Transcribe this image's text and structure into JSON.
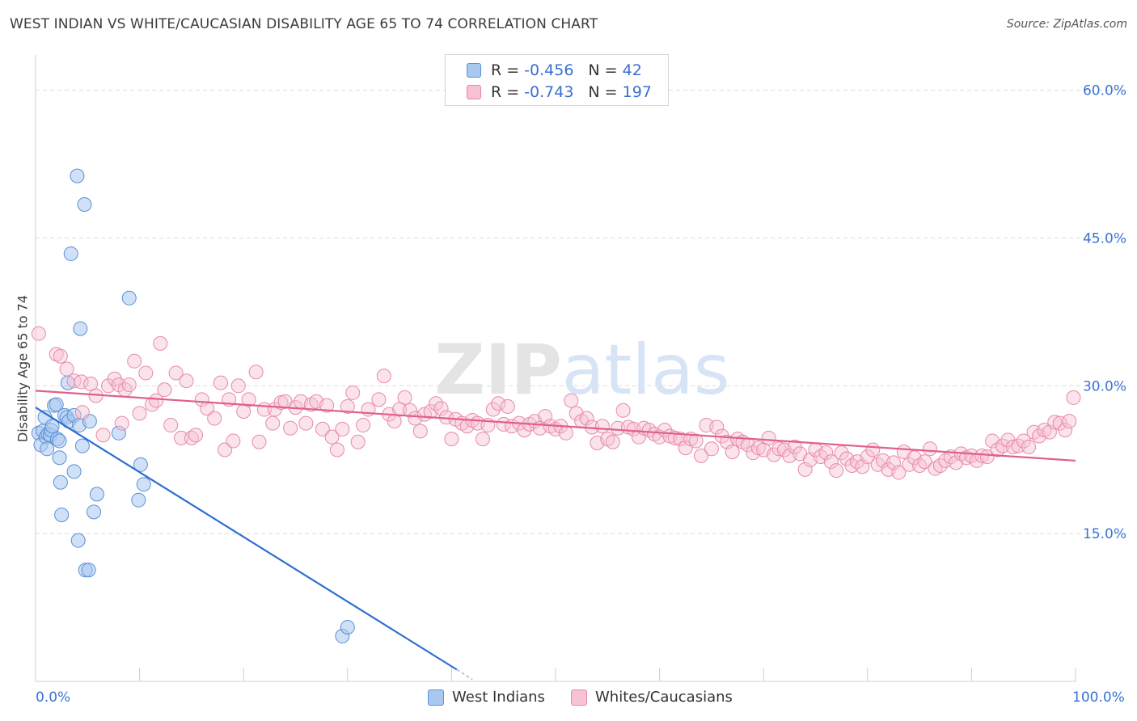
{
  "title": "WEST INDIAN VS WHITE/CAUCASIAN DISABILITY AGE 65 TO 74 CORRELATION CHART",
  "source": "Source: ZipAtlas.com",
  "watermark": "ZIPatlas",
  "legend": {
    "rows": [
      {
        "r_label": "R =",
        "r_value": "-0.456",
        "n_label": "N =",
        "n_value": "42",
        "color": "#a9c8f0"
      },
      {
        "r_label": "R =",
        "r_value": "-0.743",
        "n_label": "N =",
        "n_value": "197",
        "color": "#f7b8cb"
      }
    ]
  },
  "bottom_legend": [
    "West Indians",
    "Whites/Caucasians"
  ],
  "colors": {
    "blue_fill": "#a9c8f0",
    "blue_stroke": "#5b8fd6",
    "blue_line": "#2e6fd0",
    "pink_fill": "#f7c2d2",
    "pink_stroke": "#e889a8",
    "pink_line": "#e0608a",
    "axis_label": "#3a73d3",
    "grid": "#dcdcdc"
  },
  "chart_data": {
    "type": "scatter",
    "title": "WEST INDIAN VS WHITE/CAUCASIAN DISABILITY AGE 65 TO 74 CORRELATION CHART",
    "xlabel": "",
    "ylabel": "Disability Age 65 to 74",
    "xlim": [
      0,
      100
    ],
    "ylim": [
      0,
      63
    ],
    "x_tick_labels": [
      "0.0%",
      "100.0%"
    ],
    "y_ticks": [
      15,
      30,
      45,
      60
    ],
    "y_tick_labels": [
      "15.0%",
      "30.0%",
      "45.0%",
      "60.0%"
    ],
    "grid": true,
    "legend_position": "top-center",
    "series": [
      {
        "name": "West Indians",
        "r": -0.456,
        "n": 42,
        "trend": {
          "x": [
            0,
            40.5
          ],
          "y": [
            27.8,
            1.2
          ],
          "dashed_to": [
            42,
            0.2
          ]
        },
        "points": [
          [
            0.3,
            25.2
          ],
          [
            0.5,
            24.0
          ],
          [
            0.7,
            25.4
          ],
          [
            0.9,
            26.8
          ],
          [
            1.0,
            24.8
          ],
          [
            1.1,
            23.6
          ],
          [
            1.2,
            25.1
          ],
          [
            1.4,
            25.0
          ],
          [
            1.5,
            25.5
          ],
          [
            1.6,
            25.9
          ],
          [
            1.8,
            28.0
          ],
          [
            2.0,
            28.1
          ],
          [
            2.1,
            24.6
          ],
          [
            2.3,
            24.4
          ],
          [
            2.3,
            22.7
          ],
          [
            2.4,
            20.2
          ],
          [
            2.5,
            16.9
          ],
          [
            2.8,
            27.0
          ],
          [
            3.0,
            26.8
          ],
          [
            3.2,
            26.4
          ],
          [
            3.1,
            30.3
          ],
          [
            3.4,
            43.4
          ],
          [
            3.7,
            21.3
          ],
          [
            3.7,
            27.0
          ],
          [
            4.0,
            51.3
          ],
          [
            4.1,
            14.3
          ],
          [
            4.2,
            26.0
          ],
          [
            4.3,
            35.8
          ],
          [
            4.5,
            23.9
          ],
          [
            4.7,
            48.4
          ],
          [
            4.8,
            11.3
          ],
          [
            5.1,
            11.3
          ],
          [
            5.2,
            26.4
          ],
          [
            5.6,
            17.2
          ],
          [
            5.9,
            19.0
          ],
          [
            8.0,
            25.2
          ],
          [
            9.0,
            38.9
          ],
          [
            9.9,
            18.4
          ],
          [
            10.1,
            22.0
          ],
          [
            10.4,
            20.0
          ],
          [
            29.5,
            4.6
          ],
          [
            30.0,
            5.5
          ]
        ]
      },
      {
        "name": "Whites/Caucasians",
        "r": -0.743,
        "n": 197,
        "trend": {
          "x": [
            0,
            100
          ],
          "y": [
            29.5,
            22.4
          ]
        },
        "points": [
          [
            0.3,
            35.3
          ],
          [
            2.0,
            33.2
          ],
          [
            2.4,
            33.0
          ],
          [
            3.0,
            31.7
          ],
          [
            3.7,
            30.5
          ],
          [
            4.4,
            30.4
          ],
          [
            4.5,
            27.3
          ],
          [
            5.3,
            30.2
          ],
          [
            5.8,
            29.0
          ],
          [
            6.5,
            25.0
          ],
          [
            7.0,
            30.0
          ],
          [
            7.6,
            30.7
          ],
          [
            8.0,
            30.1
          ],
          [
            8.3,
            26.2
          ],
          [
            8.6,
            29.6
          ],
          [
            9.0,
            30.1
          ],
          [
            9.5,
            32.5
          ],
          [
            10.0,
            27.2
          ],
          [
            10.6,
            31.3
          ],
          [
            11.2,
            28.1
          ],
          [
            11.6,
            28.5
          ],
          [
            12.0,
            34.3
          ],
          [
            12.4,
            29.6
          ],
          [
            13.0,
            26.0
          ],
          [
            13.5,
            31.3
          ],
          [
            14.0,
            24.7
          ],
          [
            14.5,
            30.5
          ],
          [
            15.0,
            24.7
          ],
          [
            15.4,
            25.0
          ],
          [
            16.0,
            28.6
          ],
          [
            16.5,
            27.7
          ],
          [
            17.2,
            26.7
          ],
          [
            17.8,
            30.3
          ],
          [
            18.2,
            23.5
          ],
          [
            18.6,
            28.6
          ],
          [
            19.0,
            24.4
          ],
          [
            19.5,
            30.0
          ],
          [
            20.0,
            27.4
          ],
          [
            20.5,
            28.6
          ],
          [
            21.2,
            31.4
          ],
          [
            21.5,
            24.3
          ],
          [
            22.0,
            27.6
          ],
          [
            22.8,
            26.2
          ],
          [
            23.0,
            27.6
          ],
          [
            23.6,
            28.3
          ],
          [
            24.0,
            28.4
          ],
          [
            24.5,
            25.7
          ],
          [
            25.0,
            27.8
          ],
          [
            25.5,
            28.4
          ],
          [
            26.0,
            26.2
          ],
          [
            26.5,
            28.1
          ],
          [
            27.0,
            28.4
          ],
          [
            27.6,
            25.6
          ],
          [
            28.0,
            28.0
          ],
          [
            28.5,
            24.8
          ],
          [
            29.0,
            23.5
          ],
          [
            29.5,
            25.6
          ],
          [
            30.0,
            27.9
          ],
          [
            30.5,
            29.3
          ],
          [
            31.0,
            24.3
          ],
          [
            31.5,
            26.0
          ],
          [
            32.0,
            27.6
          ],
          [
            33.0,
            28.6
          ],
          [
            33.5,
            31.0
          ],
          [
            34.0,
            27.1
          ],
          [
            34.5,
            26.4
          ],
          [
            35.0,
            27.6
          ],
          [
            35.5,
            28.8
          ],
          [
            36.0,
            27.5
          ],
          [
            36.5,
            26.7
          ],
          [
            37.0,
            25.4
          ],
          [
            37.4,
            27.1
          ],
          [
            38.0,
            27.4
          ],
          [
            38.5,
            28.2
          ],
          [
            39.0,
            27.7
          ],
          [
            39.5,
            26.8
          ],
          [
            40.0,
            24.6
          ],
          [
            40.4,
            26.6
          ],
          [
            41.0,
            26.2
          ],
          [
            41.5,
            25.9
          ],
          [
            42.0,
            26.5
          ],
          [
            42.5,
            26.2
          ],
          [
            43.0,
            24.6
          ],
          [
            43.5,
            26.0
          ],
          [
            44.0,
            27.6
          ],
          [
            44.5,
            28.2
          ],
          [
            45.0,
            26.1
          ],
          [
            45.4,
            27.9
          ],
          [
            45.8,
            25.9
          ],
          [
            46.5,
            26.2
          ],
          [
            47.0,
            25.5
          ],
          [
            47.5,
            26.1
          ],
          [
            48.0,
            26.4
          ],
          [
            48.5,
            25.7
          ],
          [
            49.0,
            26.9
          ],
          [
            49.5,
            25.9
          ],
          [
            50.0,
            25.6
          ],
          [
            50.5,
            25.9
          ],
          [
            51.0,
            25.2
          ],
          [
            51.5,
            28.5
          ],
          [
            52.0,
            27.2
          ],
          [
            52.5,
            26.4
          ],
          [
            53.0,
            26.7
          ],
          [
            53.5,
            25.8
          ],
          [
            54.0,
            24.2
          ],
          [
            54.5,
            25.9
          ],
          [
            55.0,
            24.6
          ],
          [
            55.5,
            24.3
          ],
          [
            56.0,
            25.7
          ],
          [
            56.5,
            27.5
          ],
          [
            57.0,
            25.8
          ],
          [
            57.5,
            25.6
          ],
          [
            58.0,
            24.8
          ],
          [
            58.5,
            25.7
          ],
          [
            59.0,
            25.5
          ],
          [
            59.5,
            25.1
          ],
          [
            60.0,
            24.8
          ],
          [
            60.5,
            25.5
          ],
          [
            61.0,
            24.9
          ],
          [
            61.5,
            24.7
          ],
          [
            62.0,
            24.6
          ],
          [
            62.5,
            23.7
          ],
          [
            63.0,
            24.6
          ],
          [
            63.5,
            24.4
          ],
          [
            64.0,
            22.9
          ],
          [
            64.5,
            26.0
          ],
          [
            65.0,
            23.6
          ],
          [
            65.5,
            25.8
          ],
          [
            66.0,
            24.9
          ],
          [
            66.5,
            24.3
          ],
          [
            67.0,
            23.3
          ],
          [
            67.5,
            24.6
          ],
          [
            68.0,
            24.3
          ],
          [
            68.5,
            24.0
          ],
          [
            69.0,
            23.2
          ],
          [
            69.5,
            23.7
          ],
          [
            70.0,
            23.5
          ],
          [
            70.5,
            24.7
          ],
          [
            71.0,
            23.0
          ],
          [
            71.5,
            23.6
          ],
          [
            72.0,
            23.5
          ],
          [
            72.5,
            22.9
          ],
          [
            73.0,
            23.8
          ],
          [
            73.5,
            23.1
          ],
          [
            74.0,
            21.5
          ],
          [
            74.5,
            22.5
          ],
          [
            75.0,
            23.5
          ],
          [
            75.5,
            22.8
          ],
          [
            76.0,
            23.2
          ],
          [
            76.5,
            22.3
          ],
          [
            77.0,
            21.4
          ],
          [
            77.5,
            23.2
          ],
          [
            78.0,
            22.6
          ],
          [
            78.5,
            21.9
          ],
          [
            79.0,
            22.3
          ],
          [
            79.5,
            21.8
          ],
          [
            80.0,
            22.8
          ],
          [
            80.5,
            23.5
          ],
          [
            81.0,
            22.0
          ],
          [
            81.5,
            22.4
          ],
          [
            82.0,
            21.5
          ],
          [
            82.5,
            22.2
          ],
          [
            83.0,
            21.2
          ],
          [
            83.5,
            23.3
          ],
          [
            84.0,
            22.0
          ],
          [
            84.5,
            22.7
          ],
          [
            85.0,
            21.9
          ],
          [
            85.5,
            22.3
          ],
          [
            86.0,
            23.6
          ],
          [
            86.5,
            21.6
          ],
          [
            87.0,
            21.9
          ],
          [
            87.5,
            22.4
          ],
          [
            88.0,
            22.8
          ],
          [
            88.5,
            22.2
          ],
          [
            89.0,
            23.1
          ],
          [
            89.5,
            22.7
          ],
          [
            90.0,
            22.9
          ],
          [
            90.5,
            22.4
          ],
          [
            91.0,
            22.9
          ],
          [
            91.5,
            22.8
          ],
          [
            92.0,
            24.4
          ],
          [
            92.5,
            23.5
          ],
          [
            93.0,
            23.9
          ],
          [
            93.5,
            24.5
          ],
          [
            94.0,
            23.8
          ],
          [
            94.5,
            23.9
          ],
          [
            95.0,
            24.4
          ],
          [
            95.5,
            23.8
          ],
          [
            96.0,
            25.3
          ],
          [
            96.5,
            24.9
          ],
          [
            97.0,
            25.5
          ],
          [
            97.5,
            25.3
          ],
          [
            98.0,
            26.3
          ],
          [
            98.5,
            26.2
          ],
          [
            99.0,
            25.5
          ],
          [
            99.4,
            26.4
          ],
          [
            99.8,
            28.8
          ]
        ]
      }
    ]
  }
}
